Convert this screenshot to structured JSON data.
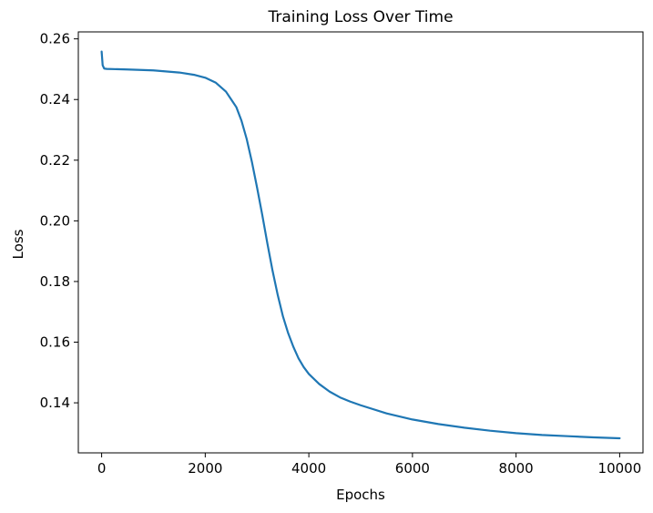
{
  "chart_data": {
    "type": "line",
    "title": "Training Loss Over Time",
    "xlabel": "Epochs",
    "ylabel": "Loss",
    "xlim": [
      -450,
      10450
    ],
    "ylim": [
      0.1235,
      0.2623
    ],
    "xticks": [
      0,
      2000,
      4000,
      6000,
      8000,
      10000
    ],
    "xtick_labels": [
      "0",
      "2000",
      "4000",
      "6000",
      "8000",
      "10000"
    ],
    "yticks": [
      0.14,
      0.16,
      0.18,
      0.2,
      0.22,
      0.24,
      0.26
    ],
    "ytick_labels": [
      "0.14",
      "0.16",
      "0.18",
      "0.20",
      "0.22",
      "0.24",
      "0.26"
    ],
    "grid": false,
    "legend": "none",
    "series": [
      {
        "color": "#1f77b4",
        "x": [
          0,
          20,
          50,
          100,
          500,
          1000,
          1500,
          1800,
          2000,
          2200,
          2400,
          2600,
          2700,
          2800,
          2900,
          3000,
          3100,
          3200,
          3300,
          3400,
          3500,
          3600,
          3700,
          3800,
          3900,
          4000,
          4200,
          4400,
          4600,
          4800,
          5000,
          5500,
          6000,
          6500,
          7000,
          7500,
          8000,
          8500,
          9000,
          9500,
          10000
        ],
        "y": [
          0.2558,
          0.2513,
          0.2502,
          0.2501,
          0.2499,
          0.2496,
          0.2489,
          0.2481,
          0.2472,
          0.2456,
          0.2426,
          0.2375,
          0.233,
          0.227,
          0.2195,
          0.211,
          0.202,
          0.1925,
          0.1835,
          0.1755,
          0.1685,
          0.163,
          0.1585,
          0.1547,
          0.1518,
          0.1495,
          0.1462,
          0.1437,
          0.1418,
          0.1404,
          0.1392,
          0.1365,
          0.1345,
          0.133,
          0.1318,
          0.1308,
          0.13,
          0.1294,
          0.129,
          0.1286,
          0.1283
        ]
      }
    ]
  }
}
